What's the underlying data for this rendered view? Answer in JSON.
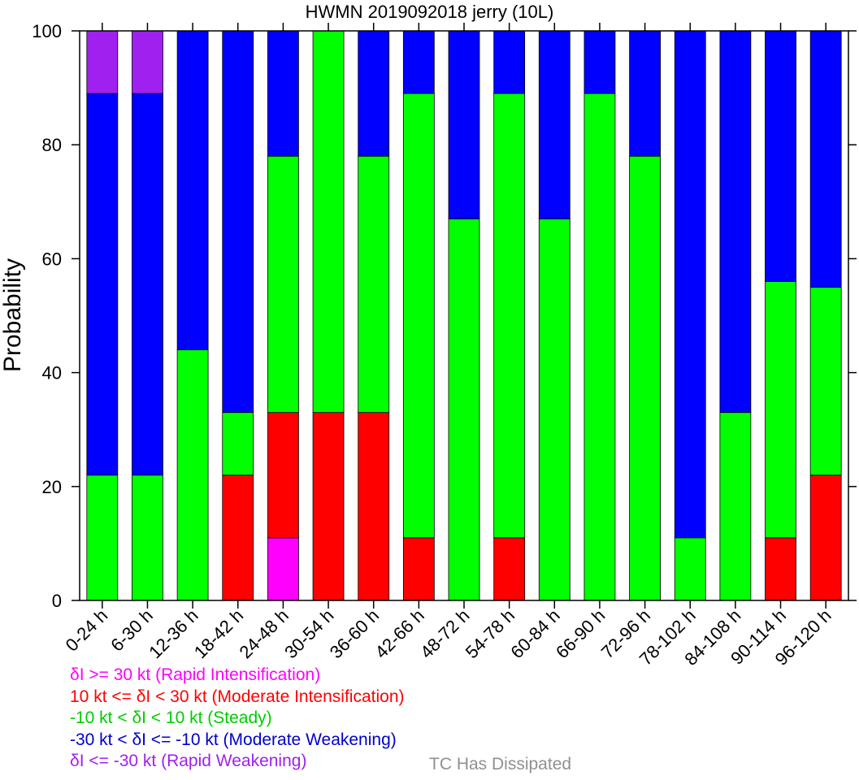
{
  "chart_data": {
    "type": "bar",
    "stacked": true,
    "title": "HWMN 2019092018 jerry (10L)",
    "xlabel": "",
    "ylabel": "Probability",
    "ylim": [
      0,
      100
    ],
    "yticks": [
      0,
      20,
      40,
      60,
      80,
      100
    ],
    "grid": false,
    "categories": [
      "0-24 h",
      "6-30 h",
      "12-36 h",
      "18-42 h",
      "24-48 h",
      "30-54 h",
      "36-60 h",
      "42-66 h",
      "48-72 h",
      "54-78 h",
      "60-84 h",
      "66-90 h",
      "72-96 h",
      "78-102 h",
      "84-108 h",
      "90-114 h",
      "96-120 h"
    ],
    "series": [
      {
        "name": "δI >= 30 kt (Rapid Intensification)",
        "color": "#ff00ff",
        "values": [
          0,
          0,
          0,
          0,
          11,
          0,
          0,
          0,
          0,
          0,
          0,
          0,
          0,
          0,
          0,
          0,
          0
        ]
      },
      {
        "name": "10 kt <= δI < 30 kt (Moderate Intensification)",
        "color": "#ff0000",
        "values": [
          0,
          0,
          0,
          22,
          22,
          33,
          33,
          11,
          0,
          11,
          0,
          0,
          0,
          0,
          0,
          11,
          22
        ]
      },
      {
        "name": "-10 kt < δI < 10 kt (Steady)",
        "color": "#00ff00",
        "values": [
          22,
          22,
          44,
          11,
          45,
          67,
          45,
          78,
          67,
          78,
          67,
          89,
          78,
          11,
          33,
          45,
          33
        ]
      },
      {
        "name": "-30 kt < δI <= -10 kt (Moderate Weakening)",
        "color": "#0000ff",
        "values": [
          67,
          67,
          56,
          67,
          22,
          0,
          22,
          11,
          33,
          11,
          33,
          11,
          22,
          89,
          67,
          44,
          45
        ]
      },
      {
        "name": "δI <= -30 kt (Rapid Weakening)",
        "color": "#a020f0",
        "values": [
          11,
          11,
          0,
          0,
          0,
          0,
          0,
          0,
          0,
          0,
          0,
          0,
          0,
          0,
          0,
          0,
          0
        ]
      },
      {
        "name": "TC Has Dissipated",
        "color": "#909090",
        "values": [
          0,
          0,
          0,
          0,
          0,
          0,
          0,
          0,
          0,
          0,
          0,
          0,
          0,
          0,
          0,
          0,
          0
        ]
      }
    ],
    "legend": {
      "placement": "bottom",
      "entries": [
        {
          "label": "δI >= 30 kt (Rapid Intensification)",
          "color": "#ff00ff"
        },
        {
          "label": "10 kt <= δI < 30 kt (Moderate Intensification)",
          "color": "#ff0000"
        },
        {
          "label": "-10 kt < δI < 10 kt (Steady)",
          "color": "#00cc00"
        },
        {
          "label": "-30 kt < δI <= -10 kt (Moderate Weakening)",
          "color": "#0000cc"
        },
        {
          "label": "δI <= -30 kt (Rapid Weakening)",
          "color": "#a020f0"
        },
        {
          "label": "TC Has Dissipated",
          "color": "#909090"
        }
      ]
    }
  }
}
